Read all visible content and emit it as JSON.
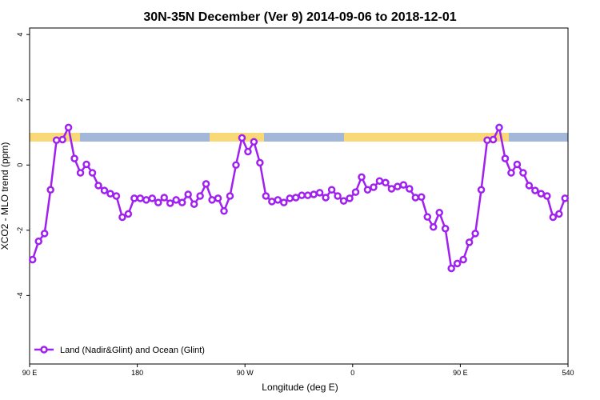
{
  "chart_data": {
    "type": "line",
    "title": "30N-35N December (Ver 9)   2014-09-06 to 2018-12-01",
    "x_label": "Longitude (deg E)",
    "y_label": "XCO2 - MLO trend (ppm)",
    "x": [
      92.5,
      97.5,
      102.5,
      107.5,
      112.5,
      117.5,
      122.5,
      127.5,
      132.5,
      137.5,
      142.5,
      147.5,
      152.5,
      157.5,
      162.5,
      167.5,
      172.5,
      177.5,
      182.5,
      187.5,
      192.5,
      197.5,
      202.5,
      207.5,
      212.5,
      217.5,
      222.5,
      227.5,
      232.5,
      237.5,
      242.5,
      247.5,
      252.5,
      257.5,
      262.5,
      267.5,
      272.5,
      277.5,
      282.5,
      287.5,
      292.5,
      297.5,
      302.5,
      307.5,
      312.5,
      317.5,
      322.5,
      327.5,
      332.5,
      337.5,
      342.5,
      347.5,
      352.5,
      357.5,
      362.5,
      367.5,
      372.5,
      377.5,
      382.5,
      387.5,
      392.5,
      397.5,
      402.5,
      407.5,
      412.5,
      417.5,
      422.5,
      427.5,
      432.5,
      437.5,
      442.5,
      447.5,
      452.5,
      457.5,
      462.5,
      467.5,
      472.5,
      477.5,
      482.5,
      487.5,
      492.5,
      497.5,
      502.5,
      507.5,
      512.5,
      517.5,
      522.5,
      527.5,
      532.5,
      537.5
    ],
    "series": [
      {
        "name": "Land (Nadir&Glint) and Ocean (Glint)",
        "color": "#a020f0",
        "values": [
          -2.9,
          -2.34,
          -2.1,
          -0.76,
          0.76,
          0.78,
          1.15,
          0.2,
          -0.24,
          0.02,
          -0.24,
          -0.63,
          -0.78,
          -0.88,
          -0.95,
          -1.6,
          -1.5,
          -1.02,
          -1.02,
          -1.07,
          -1.02,
          -1.15,
          -1.0,
          -1.17,
          -1.07,
          -1.15,
          -0.9,
          -1.2,
          -0.95,
          -0.58,
          -1.07,
          -1.02,
          -1.41,
          -0.95,
          0.0,
          0.83,
          0.41,
          0.71,
          0.07,
          -0.95,
          -1.12,
          -1.07,
          -1.15,
          -1.02,
          -1.0,
          -0.93,
          -0.93,
          -0.9,
          -0.85,
          -1.0,
          -0.76,
          -0.95,
          -1.1,
          -1.02,
          -0.83,
          -0.37,
          -0.76,
          -0.68,
          -0.49,
          -0.54,
          -0.73,
          -0.66,
          -0.61,
          -0.73,
          -1.0,
          -0.98,
          -1.59,
          -1.9,
          -1.46,
          -1.95,
          -3.17,
          -3.02,
          -2.9,
          -2.37,
          -2.1,
          -0.76,
          0.76,
          0.78,
          1.15,
          0.2,
          -0.24,
          0.02,
          -0.24,
          -0.63,
          -0.78,
          -0.88,
          -0.95,
          -1.6,
          -1.5,
          -1.02
        ]
      }
    ],
    "xlim": [
      90,
      540
    ],
    "xticks": [
      {
        "value": 90,
        "label": "90 E"
      },
      180,
      {
        "value": 270,
        "label": "90 W"
      },
      {
        "value": 360,
        "label": "0"
      },
      {
        "value": 450,
        "label": "90 E"
      },
      540
    ],
    "ylim": [
      -6.1,
      4.2
    ],
    "yticks": [
      -4,
      -2,
      0,
      2,
      4
    ],
    "legend": "bottomleft"
  }
}
